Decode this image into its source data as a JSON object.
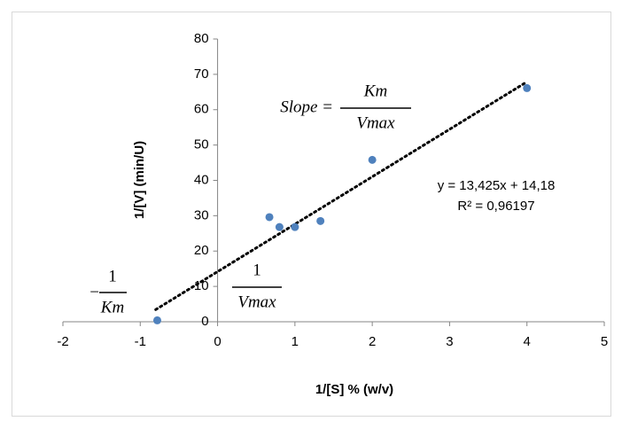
{
  "chart_data": {
    "type": "scatter",
    "x_label": "1/[S] % (w/v)",
    "y_label": "1/[V] (min/U)",
    "x": [
      -0.78,
      0.67,
      0.8,
      1.0,
      1.33,
      2.0,
      4.0
    ],
    "values": [
      0.4,
      29.6,
      26.8,
      26.8,
      28.5,
      45.8,
      66.1
    ],
    "color": "#4f81bd",
    "trendline": {
      "x": [
        -0.8,
        4.0
      ],
      "values": [
        3.44,
        67.88
      ],
      "color": "#000000"
    },
    "xlim": [
      -2,
      5
    ],
    "xticks": [
      -2,
      -1,
      0,
      1,
      2,
      3,
      4,
      5
    ],
    "ylim": [
      0,
      80
    ],
    "yticks": [
      0,
      10,
      20,
      30,
      40,
      50,
      60,
      70,
      80
    ],
    "grid": false,
    "annotations": {
      "equation": "y = 13,425x + 14,18",
      "r_squared": "R² = 0,96197",
      "slope": {
        "lhs": "Slope =",
        "numerator": "Km",
        "denominator": "Vmax"
      },
      "x_intercept": {
        "sign": "−",
        "numerator": "1",
        "denominator": "Km"
      },
      "y_intercept": {
        "numerator": "1",
        "denominator": "Vmax"
      }
    }
  }
}
